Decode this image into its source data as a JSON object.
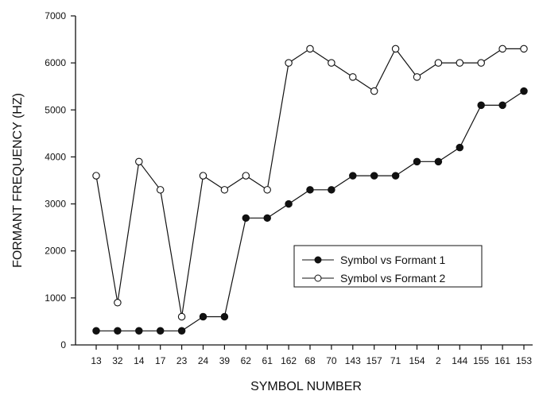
{
  "chart_data": {
    "type": "line",
    "title": "",
    "xlabel": "SYMBOL NUMBER",
    "ylabel": "FORMANT FREQUENCY (HZ)",
    "ylim": [
      0,
      7000
    ],
    "yticks": [
      "0",
      "1000",
      "2000",
      "3000",
      "4000",
      "5000",
      "6000",
      "7000"
    ],
    "categories": [
      "13",
      "32",
      "14",
      "17",
      "23",
      "24",
      "39",
      "62",
      "61",
      "162",
      "68",
      "70",
      "143",
      "157",
      "71",
      "154",
      "2",
      "144",
      "155",
      "161",
      "153"
    ],
    "grid": false,
    "legend_position": "center-right",
    "series": [
      {
        "name": "Symbol vs Formant 1",
        "marker": "filled-circle",
        "values": [
          300,
          300,
          300,
          300,
          300,
          600,
          600,
          2700,
          2700,
          3000,
          3300,
          3300,
          3600,
          3600,
          3600,
          3900,
          3900,
          4200,
          5100,
          5100,
          5400
        ]
      },
      {
        "name": "Symbol vs Formant 2",
        "marker": "open-circle",
        "values": [
          3600,
          900,
          3900,
          3300,
          600,
          3600,
          3300,
          3600,
          3300,
          6000,
          6300,
          6000,
          5700,
          5400,
          6300,
          5700,
          6000,
          6000,
          6000,
          6300,
          6300
        ]
      }
    ]
  }
}
